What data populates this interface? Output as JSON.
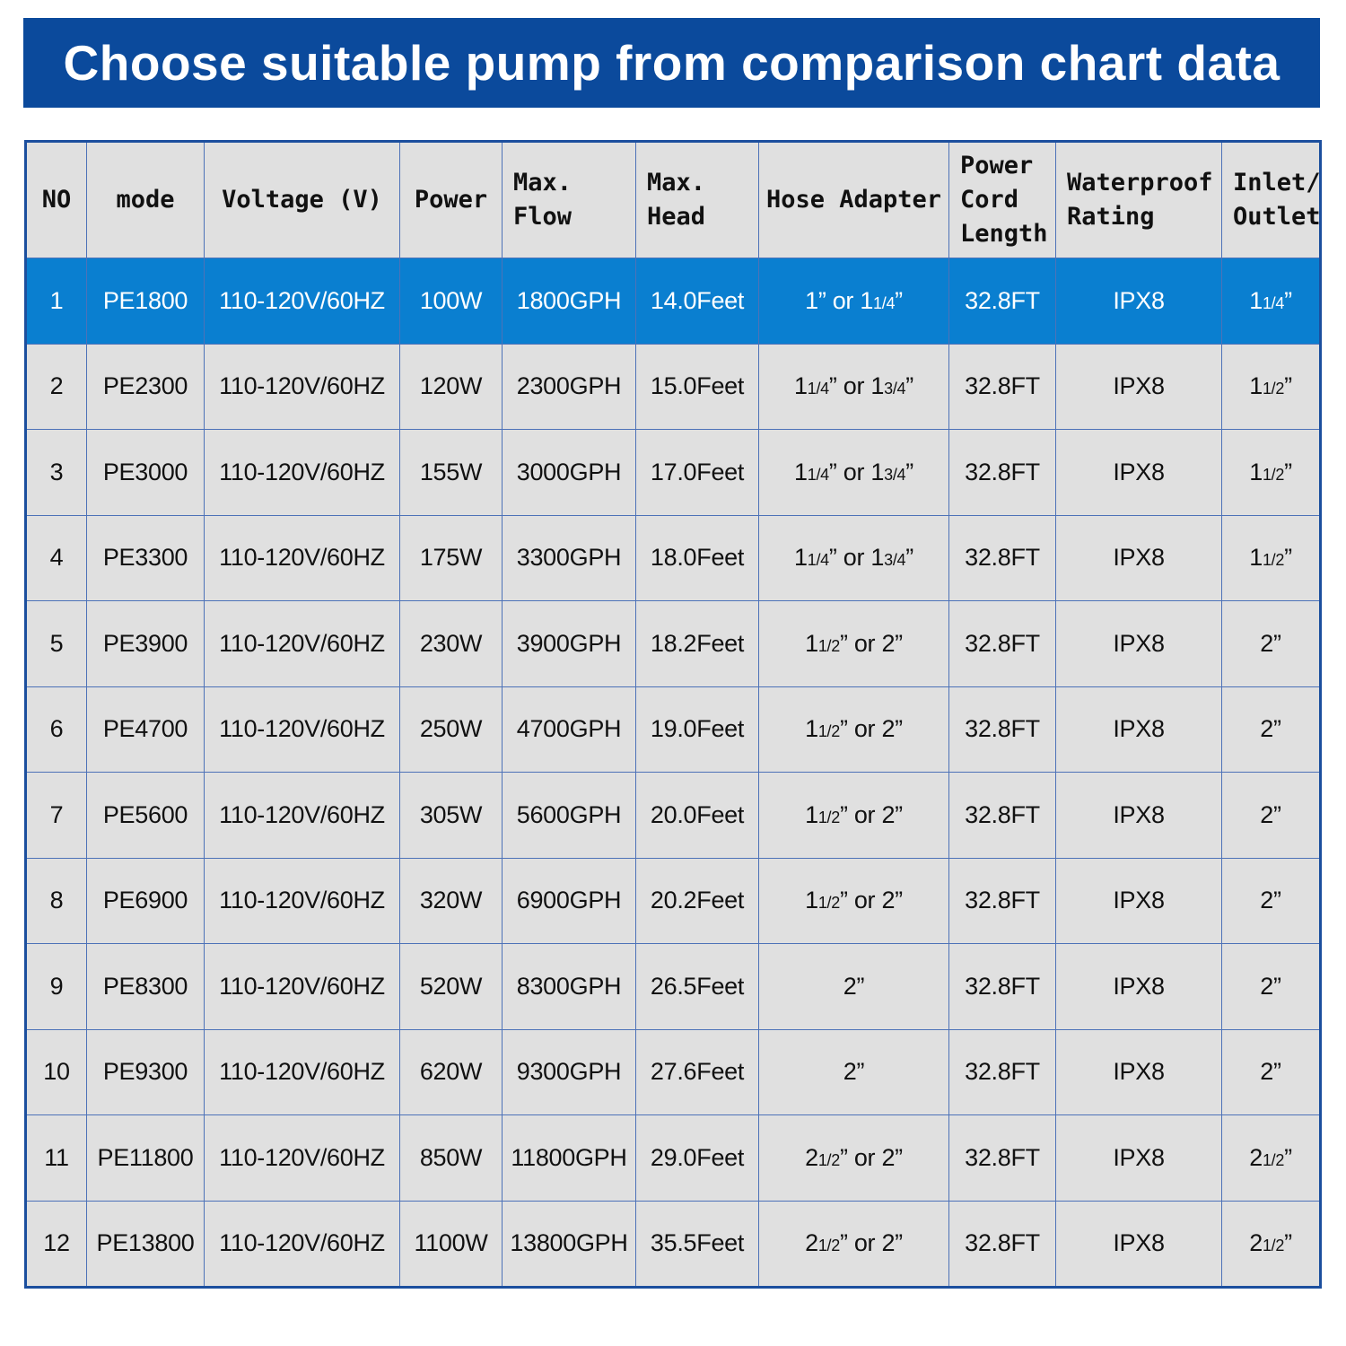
{
  "title": "Choose suitable pump from comparison chart data",
  "highlight_color": "#0a7fd0",
  "banner_color": "#0b4a9c",
  "columns": [
    "NO",
    "mode",
    "Voltage (V)",
    "Power",
    "Max. Flow",
    "Max. Head",
    "Hose Adapter",
    "Power Cord Length",
    "Waterproof Rating",
    "Inlet/ Outlet"
  ],
  "rows": [
    {
      "no": "1",
      "mode": "PE1800",
      "voltage": "110-120V/60HZ",
      "power": "100W",
      "flow": "1800GPH",
      "head": "14.0Feet",
      "hose": "1” or 11/4”",
      "cord": "32.8FT",
      "rating": "IPX8",
      "inlet": "11/4”",
      "highlighted": true
    },
    {
      "no": "2",
      "mode": "PE2300",
      "voltage": "110-120V/60HZ",
      "power": "120W",
      "flow": "2300GPH",
      "head": "15.0Feet",
      "hose": "11/4” or 13/4”",
      "cord": "32.8FT",
      "rating": "IPX8",
      "inlet": "11/2”"
    },
    {
      "no": "3",
      "mode": "PE3000",
      "voltage": "110-120V/60HZ",
      "power": "155W",
      "flow": "3000GPH",
      "head": "17.0Feet",
      "hose": "11/4” or 13/4”",
      "cord": "32.8FT",
      "rating": "IPX8",
      "inlet": "11/2”"
    },
    {
      "no": "4",
      "mode": "PE3300",
      "voltage": "110-120V/60HZ",
      "power": "175W",
      "flow": "3300GPH",
      "head": "18.0Feet",
      "hose": "11/4” or 13/4”",
      "cord": "32.8FT",
      "rating": "IPX8",
      "inlet": "11/2”"
    },
    {
      "no": "5",
      "mode": "PE3900",
      "voltage": "110-120V/60HZ",
      "power": "230W",
      "flow": "3900GPH",
      "head": "18.2Feet",
      "hose": "11/2” or 2”",
      "cord": "32.8FT",
      "rating": "IPX8",
      "inlet": "2”"
    },
    {
      "no": "6",
      "mode": "PE4700",
      "voltage": "110-120V/60HZ",
      "power": "250W",
      "flow": "4700GPH",
      "head": "19.0Feet",
      "hose": "11/2” or 2”",
      "cord": "32.8FT",
      "rating": "IPX8",
      "inlet": "2”"
    },
    {
      "no": "7",
      "mode": "PE5600",
      "voltage": "110-120V/60HZ",
      "power": "305W",
      "flow": "5600GPH",
      "head": "20.0Feet",
      "hose": "11/2” or 2”",
      "cord": "32.8FT",
      "rating": "IPX8",
      "inlet": "2”"
    },
    {
      "no": "8",
      "mode": "PE6900",
      "voltage": "110-120V/60HZ",
      "power": "320W",
      "flow": "6900GPH",
      "head": "20.2Feet",
      "hose": "11/2” or 2”",
      "cord": "32.8FT",
      "rating": "IPX8",
      "inlet": "2”"
    },
    {
      "no": "9",
      "mode": "PE8300",
      "voltage": "110-120V/60HZ",
      "power": "520W",
      "flow": "8300GPH",
      "head": "26.5Feet",
      "hose": "2”",
      "cord": "32.8FT",
      "rating": "IPX8",
      "inlet": "2”"
    },
    {
      "no": "10",
      "mode": "PE9300",
      "voltage": "110-120V/60HZ",
      "power": "620W",
      "flow": "9300GPH",
      "head": "27.6Feet",
      "hose": "2”",
      "cord": "32.8FT",
      "rating": "IPX8",
      "inlet": "2”"
    },
    {
      "no": "11",
      "mode": "PE11800",
      "voltage": "110-120V/60HZ",
      "power": "850W",
      "flow": "11800GPH",
      "head": "29.0Feet",
      "hose": "21/2” or 2”",
      "cord": "32.8FT",
      "rating": "IPX8",
      "inlet": "21/2”"
    },
    {
      "no": "12",
      "mode": "PE13800",
      "voltage": "110-120V/60HZ",
      "power": "1100W",
      "flow": "13800GPH",
      "head": "35.5Feet",
      "hose": "21/2” or 2”",
      "cord": "32.8FT",
      "rating": "IPX8",
      "inlet": "21/2”"
    }
  ]
}
